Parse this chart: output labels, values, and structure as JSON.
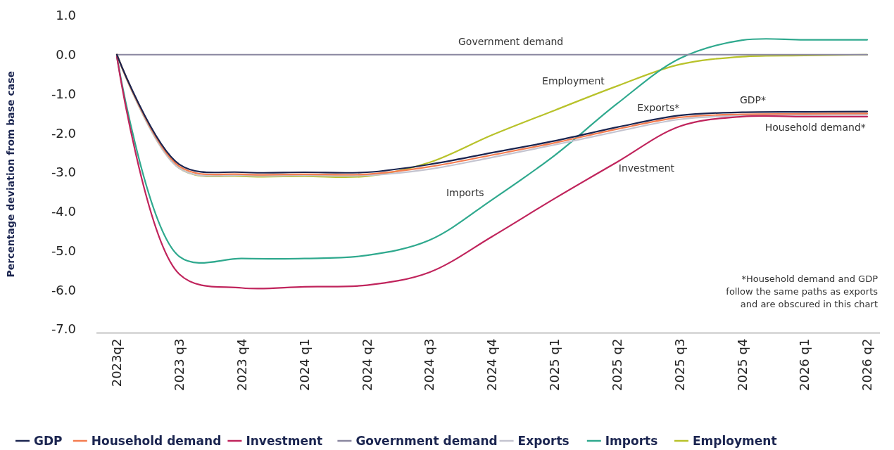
{
  "chart_data": {
    "type": "line",
    "ylabel": "Percentage deviation from base case",
    "legend": "bottom",
    "categories": [
      "2023q2",
      "2023 q3",
      "2023 q4",
      "2024 q1",
      "2024 q2",
      "2024 q3",
      "2024 q4",
      "2025 q1",
      "2025 q2",
      "2025 q3",
      "2025 q4",
      "2026 q1",
      "2026 q2"
    ],
    "ylim": [
      -7.1,
      1
    ],
    "yticks": [
      {
        "value": 1,
        "label": "1.0"
      },
      {
        "value": 0,
        "label": "0.0"
      },
      {
        "value": -1,
        "label": "-1.0"
      },
      {
        "value": -2,
        "label": "-2.0"
      },
      {
        "value": -3,
        "label": "-3.0"
      },
      {
        "value": -4,
        "label": "-4.0"
      },
      {
        "value": -5,
        "label": "-5.0"
      },
      {
        "value": -6,
        "label": "-6.0"
      },
      {
        "value": -7,
        "label": "-7.0"
      }
    ],
    "series": [
      {
        "name": "GDP",
        "color": "#1b2550",
        "values": [
          0,
          -2.8,
          -3.0,
          -3.0,
          -3.0,
          -2.8,
          -2.5,
          -2.2,
          -1.85,
          -1.55,
          -1.47,
          -1.46,
          -1.45
        ]
      },
      {
        "name": "Household demand",
        "color": "#f47c50",
        "values": [
          0,
          -2.85,
          -3.05,
          -3.05,
          -3.05,
          -2.86,
          -2.56,
          -2.25,
          -1.9,
          -1.6,
          -1.52,
          -1.51,
          -1.5
        ]
      },
      {
        "name": "Investment",
        "color": "#c0245c",
        "values": [
          -0.05,
          -5.6,
          -5.95,
          -5.92,
          -5.88,
          -5.55,
          -4.64,
          -3.67,
          -2.74,
          -1.83,
          -1.58,
          -1.58,
          -1.58
        ]
      },
      {
        "name": "Government demand",
        "color": "#8a87a0",
        "values": [
          0,
          0,
          0,
          0,
          0,
          0,
          0,
          0,
          0,
          0,
          0,
          0,
          0
        ]
      },
      {
        "name": "Exports",
        "color": "#c4c4d0",
        "values": [
          0,
          -2.9,
          -3.08,
          -3.08,
          -3.08,
          -2.92,
          -2.62,
          -2.3,
          -1.96,
          -1.65,
          -1.55,
          -1.54,
          -1.53
        ]
      },
      {
        "name": "Imports",
        "color": "#2fa98e",
        "values": [
          -0.05,
          -5.15,
          -5.2,
          -5.2,
          -5.12,
          -4.73,
          -3.7,
          -2.57,
          -1.25,
          -0.1,
          0.37,
          0.38,
          0.38
        ]
      },
      {
        "name": "Employment",
        "color": "#b8c22a",
        "values": [
          0,
          -2.9,
          -3.1,
          -3.1,
          -3.1,
          -2.75,
          -2.05,
          -1.42,
          -0.8,
          -0.25,
          -0.05,
          -0.02,
          0
        ]
      }
    ],
    "annotations": [
      "Government demand",
      "Employment",
      "Exports*",
      "GDP*",
      "Household demand*",
      "Investment",
      "Imports",
      "*Household demand and GDP follow the same paths as exports and are obscured in this chart"
    ]
  }
}
